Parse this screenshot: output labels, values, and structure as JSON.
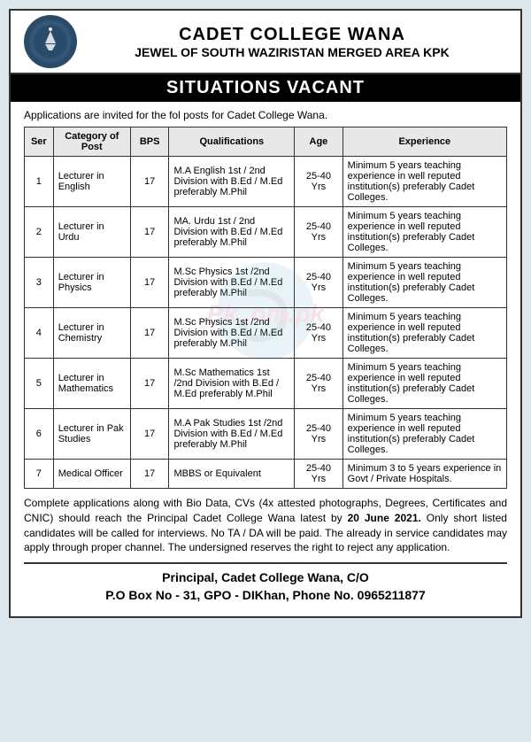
{
  "header": {
    "title": "CADET COLLEGE WANA",
    "subtitle": "JEWEL OF SOUTH WAZIRISTAN MERGED AREA KPK",
    "heading": "SITUATIONS VACANT"
  },
  "intro": "Applications are invited for the fol posts for Cadet College Wana.",
  "table": {
    "columns": [
      "Ser",
      "Category of Post",
      "BPS",
      "Qualifications",
      "Age",
      "Experience"
    ],
    "col_widths": [
      "6%",
      "16%",
      "8%",
      "26%",
      "10%",
      "34%"
    ],
    "col_align": [
      "center",
      "left",
      "center",
      "left",
      "center",
      "left"
    ],
    "rows": [
      [
        "1",
        "Lecturer in English",
        "17",
        "M.A English 1st / 2nd Division with B.Ed / M.Ed preferably M.Phil",
        "25-40 Yrs",
        "Minimum 5 years teaching experience in well reputed institution(s) preferably Cadet Colleges."
      ],
      [
        "2",
        "Lecturer in Urdu",
        "17",
        "MA. Urdu 1st / 2nd Division with B.Ed / M.Ed preferably M.Phil",
        "25-40 Yrs",
        "Minimum 5 years teaching experience in well reputed institution(s) preferably Cadet Colleges."
      ],
      [
        "3",
        "Lecturer in Physics",
        "17",
        "M.Sc Physics 1st /2nd Division with B.Ed / M.Ed preferably M.Phil",
        "25-40 Yrs",
        "Minimum 5 years teaching experience in well reputed institution(s) preferably Cadet Colleges."
      ],
      [
        "4",
        "Lecturer in Chemistry",
        "17",
        "M.Sc Physics 1st /2nd Division with B.Ed / M.Ed preferably M.Phil",
        "25-40 Yrs",
        "Minimum 5 years teaching experience in well reputed institution(s) preferably Cadet Colleges."
      ],
      [
        "5",
        "Lecturer in Mathematics",
        "17",
        "M.Sc Mathematics 1st /2nd Division with B.Ed / M.Ed preferably M.Phil",
        "25-40 Yrs",
        "Minimum 5 years teaching experience in well reputed institution(s) preferably Cadet Colleges."
      ],
      [
        "6",
        "Lecturer in Pak Studies",
        "17",
        "M.A Pak Studies 1st /2nd Division with B.Ed / M.Ed preferably M.Phil",
        "25-40 Yrs",
        "Minimum 5 years teaching experience in well reputed institution(s) preferably Cadet Colleges."
      ],
      [
        "7",
        "Medical Officer",
        "17",
        "MBBS or Equivalent",
        "25-40 Yrs",
        "Minimum 3 to 5 years experience in Govt / Private Hospitals."
      ]
    ]
  },
  "instructions": {
    "text_before": "Complete applications along with Bio Data, CVs (4x attested photographs, Degrees, Certificates and CNIC) should reach the Principal Cadet College Wana latest by ",
    "deadline": "20 June 2021.",
    "text_after": " Only short listed candidates will be called for interviews. No TA / DA will be paid. The already in service candidates may apply through proper channel. The undersigned reserves the right to reject any application."
  },
  "footer": {
    "line1": "Principal, Cadet College Wana, C/O",
    "line2": "P.O Box No - 31, GPO - DIKhan, Phone No. 0965211877"
  },
  "watermark": "Pk   .om.pk",
  "colors": {
    "page_bg": "#dde8ec",
    "card_bg": "#ffffff",
    "border": "#333333",
    "heading_bg": "#000000",
    "heading_fg": "#ffffff",
    "th_bg": "#e8e8e8",
    "watermark": "#c04060"
  }
}
